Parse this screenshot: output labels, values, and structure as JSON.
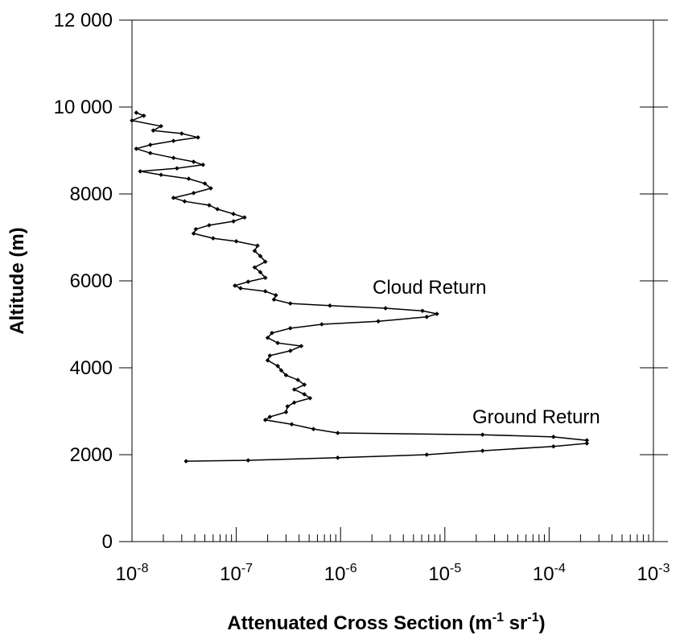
{
  "chart_data": {
    "type": "line",
    "xlabel": [
      "Attenuated Cross Section (m",
      "-1",
      " sr",
      "-1",
      ")"
    ],
    "ylabel": "Altitude (m)",
    "xscale": "log",
    "xlim": [
      1e-08,
      0.001
    ],
    "ylim": [
      0,
      12000
    ],
    "xticks": [
      {
        "value": 1e-08,
        "label": "10",
        "power": "-8"
      },
      {
        "value": 1e-07,
        "label": "10",
        "power": "-7"
      },
      {
        "value": 1e-06,
        "label": "10",
        "power": "-6"
      },
      {
        "value": 1e-05,
        "label": "10",
        "power": "-5"
      },
      {
        "value": 0.0001,
        "label": "10",
        "power": "-4"
      },
      {
        "value": 0.001,
        "label": "10",
        "power": "-3"
      }
    ],
    "yticks": [
      0,
      2000,
      4000,
      6000,
      8000,
      {
        "value": 10000,
        "label": "10 000"
      },
      {
        "value": 12000,
        "label": "12 000"
      }
    ],
    "annotations": [
      "Cloud Return",
      "Ground Return"
    ],
    "x": [
      1.1e-08,
      1.3e-08,
      1e-08,
      1.9e-08,
      1.6e-08,
      3e-08,
      4.3e-08,
      2.5e-08,
      1.5e-08,
      1.1e-08,
      1.5e-08,
      2.5e-08,
      3.9e-08,
      4.8e-08,
      2.7e-08,
      1.2e-08,
      1.9e-08,
      3.5e-08,
      5e-08,
      5.7e-08,
      3.9e-08,
      2.5e-08,
      3.2e-08,
      5.5e-08,
      6.6e-08,
      9.4e-08,
      1.2e-07,
      9.4e-08,
      5.5e-08,
      4.1e-08,
      3.9e-08,
      6e-08,
      1e-07,
      1.6e-07,
      1.5e-07,
      1.7e-07,
      1.9e-07,
      1.5e-07,
      1.7e-07,
      1.9e-07,
      1.3e-07,
      9.7e-08,
      1.1e-07,
      1.9e-07,
      2.4e-07,
      2.3e-07,
      3.3e-07,
      7.9e-07,
      2.7e-06,
      6.1e-06,
      8.4e-06,
      6.7e-06,
      2.3e-06,
      6.6e-07,
      3.3e-07,
      2.2e-07,
      2e-07,
      2.5e-07,
      4.2e-07,
      3.3e-07,
      2.1e-07,
      2e-07,
      2.5e-07,
      2.7e-07,
      3e-07,
      3.9e-07,
      4.5e-07,
      3.6e-07,
      4.5e-07,
      5.1e-07,
      3.6e-07,
      3.1e-07,
      3e-07,
      2.1e-07,
      1.9e-07,
      3.4e-07,
      5.5e-07,
      9.4e-07,
      2.3e-05,
      0.00011,
      0.00023,
      0.00023,
      0.00011,
      2.3e-05,
      6.7e-06,
      9.4e-07,
      1.3e-07,
      3.3e-08
    ],
    "series": [
      {
        "color": "#000000",
        "values": [
          9870,
          9800,
          9690,
          9560,
          9460,
          9390,
          9300,
          9220,
          9130,
          9040,
          8940,
          8830,
          8740,
          8670,
          8590,
          8520,
          8440,
          8350,
          8240,
          8130,
          8020,
          7910,
          7830,
          7740,
          7650,
          7540,
          7460,
          7370,
          7280,
          7190,
          7090,
          6980,
          6910,
          6810,
          6690,
          6570,
          6440,
          6310,
          6200,
          6070,
          5980,
          5890,
          5830,
          5760,
          5670,
          5570,
          5480,
          5430,
          5370,
          5310,
          5240,
          5170,
          5070,
          5000,
          4910,
          4800,
          4690,
          4570,
          4500,
          4390,
          4280,
          4170,
          4040,
          3940,
          3830,
          3720,
          3610,
          3500,
          3390,
          3300,
          3200,
          3110,
          2980,
          2870,
          2800,
          2700,
          2590,
          2500,
          2460,
          2410,
          2330,
          2260,
          2190,
          2090,
          2000,
          1930,
          1870,
          1850
        ]
      }
    ]
  }
}
